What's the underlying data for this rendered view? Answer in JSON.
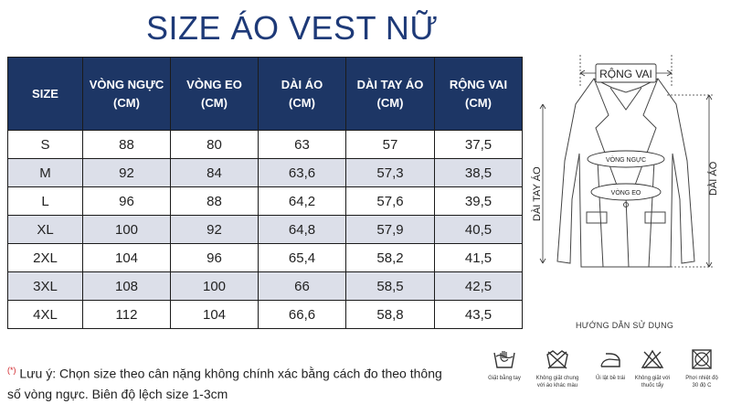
{
  "title": "SIZE ÁO VEST NỮ",
  "table": {
    "headers": [
      {
        "line1": "SIZE",
        "line2": ""
      },
      {
        "line1": "VÒNG NGỰC",
        "line2": "(CM)"
      },
      {
        "line1": "VÒNG EO",
        "line2": "(CM)"
      },
      {
        "line1": "DÀI ÁO",
        "line2": "(CM)"
      },
      {
        "line1": "DÀI TAY ÁO",
        "line2": "(CM)"
      },
      {
        "line1": "RỘNG VAI",
        "line2": "(CM)"
      }
    ],
    "rows": [
      [
        "S",
        "88",
        "80",
        "63",
        "57",
        "37,5"
      ],
      [
        "M",
        "92",
        "84",
        "63,6",
        "57,3",
        "38,5"
      ],
      [
        "L",
        "96",
        "88",
        "64,2",
        "57,6",
        "39,5"
      ],
      [
        "XL",
        "100",
        "92",
        "64,8",
        "57,9",
        "40,5"
      ],
      [
        "2XL",
        "104",
        "96",
        "65,4",
        "58,2",
        "41,5"
      ],
      [
        "3XL",
        "108",
        "100",
        "66",
        "58,5",
        "42,5"
      ],
      [
        "4XL",
        "112",
        "104",
        "66,6",
        "58,8",
        "43,5"
      ]
    ]
  },
  "diagram": {
    "shoulder": "RỘNG VAI",
    "chest": "VÒNG NGỰC",
    "waist": "VÒNG EO",
    "sleeve": "DÀI TAY ÁO",
    "length": "DÀI ÁO"
  },
  "note": {
    "mark": "(*)",
    "text": "Lưu ý: Chọn size theo cân nặng không chính xác bằng cách đo theo thông số vòng ngực. Biên độ lệch size 1-3cm"
  },
  "care": {
    "title": "HƯỚNG DẪN SỬ DỤNG",
    "items": [
      {
        "icon": "hand-wash-icon",
        "line1": "Giặt bằng tay",
        "line2": ""
      },
      {
        "icon": "no-mixed-wash-icon",
        "line1": "Không giặt chung",
        "line2": "với áo khác màu"
      },
      {
        "icon": "iron-reverse-icon",
        "line1": "Ủi lật bề trái",
        "line2": ""
      },
      {
        "icon": "no-bleach-icon",
        "line1": "Không giặt với",
        "line2": "thuốc tẩy"
      },
      {
        "icon": "dry-temp-icon",
        "line1": "Phơi nhiệt độ",
        "line2": "30 độ C"
      }
    ]
  },
  "colors": {
    "header_bg": "#1d3665",
    "shade_row": "#dcdfe9",
    "title": "#1e3a78",
    "note_mark": "#d1262b"
  }
}
